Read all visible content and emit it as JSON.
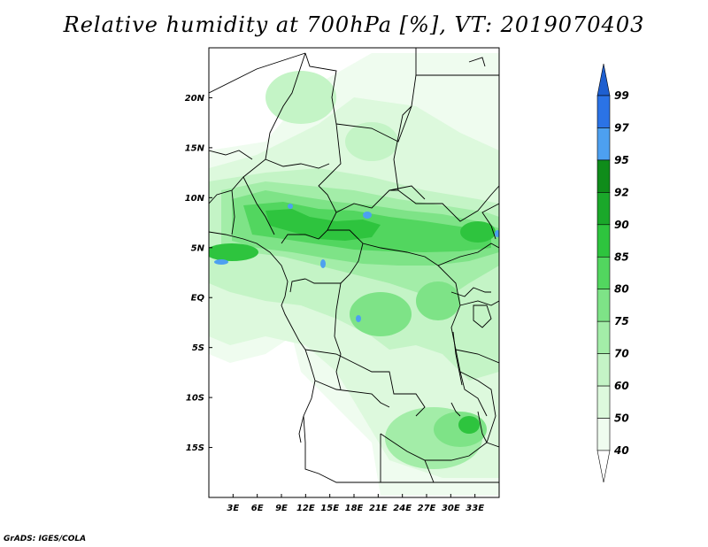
{
  "title": "Relative humidity at 700hPa [%], VT: 2019070403",
  "footer": "GrADS: IGES/COLA",
  "map": {
    "lon_range": [
      0,
      36
    ],
    "lat_range": [
      -20,
      25
    ],
    "lat_ticks": [
      {
        "value": 20,
        "label": "20N"
      },
      {
        "value": 15,
        "label": "15N"
      },
      {
        "value": 10,
        "label": "10N"
      },
      {
        "value": 5,
        "label": "5N"
      },
      {
        "value": 0,
        "label": "EQ"
      },
      {
        "value": -5,
        "label": "5S"
      },
      {
        "value": -10,
        "label": "10S"
      },
      {
        "value": -15,
        "label": "15S"
      }
    ],
    "lon_ticks": [
      {
        "value": 3,
        "label": "3E"
      },
      {
        "value": 6,
        "label": "6E"
      },
      {
        "value": 9,
        "label": "9E"
      },
      {
        "value": 12,
        "label": "12E"
      },
      {
        "value": 15,
        "label": "15E"
      },
      {
        "value": 18,
        "label": "18E"
      },
      {
        "value": 21,
        "label": "21E"
      },
      {
        "value": 24,
        "label": "24E"
      },
      {
        "value": 27,
        "label": "27E"
      },
      {
        "value": 30,
        "label": "30E"
      },
      {
        "value": 33,
        "label": "33E"
      }
    ]
  },
  "colorbar": {
    "bins": [
      {
        "from": 99,
        "to": null,
        "color": "#1e5fd0"
      },
      {
        "from": 97,
        "to": 99,
        "color": "#2b73e6"
      },
      {
        "from": 95,
        "to": 97,
        "color": "#4da0f0"
      },
      {
        "from": 92,
        "to": 95,
        "color": "#0f8c1a"
      },
      {
        "from": 90,
        "to": 92,
        "color": "#1aa82a"
      },
      {
        "from": 85,
        "to": 90,
        "color": "#2ec43e"
      },
      {
        "from": 80,
        "to": 85,
        "color": "#52d65f"
      },
      {
        "from": 75,
        "to": 80,
        "color": "#7ee387"
      },
      {
        "from": 70,
        "to": 75,
        "color": "#a3eda8"
      },
      {
        "from": 60,
        "to": 70,
        "color": "#c4f4c6"
      },
      {
        "from": 50,
        "to": 60,
        "color": "#ddf9dd"
      },
      {
        "from": 40,
        "to": 50,
        "color": "#effcef"
      },
      {
        "from": null,
        "to": 40,
        "color": "#ffffff"
      }
    ],
    "labels": [
      "99",
      "97",
      "95",
      "92",
      "90",
      "85",
      "80",
      "75",
      "70",
      "60",
      "50",
      "40"
    ]
  }
}
